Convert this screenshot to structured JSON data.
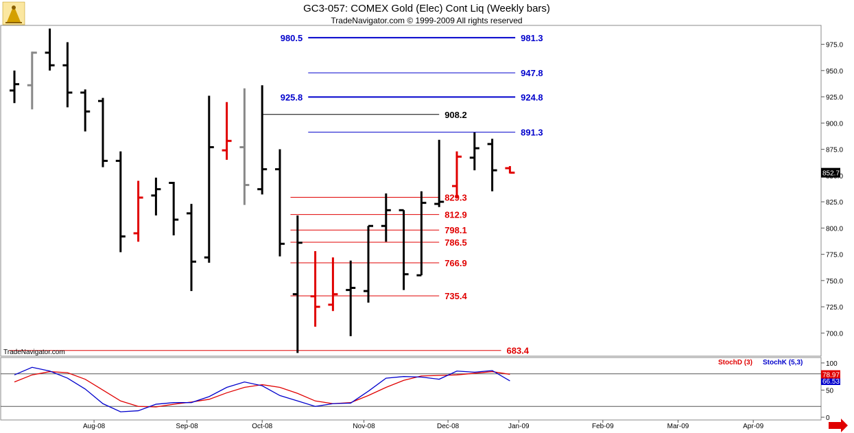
{
  "header": {
    "title": "GC3-057:  COMEX Gold (Elec) Cont Liq  (Weekly bars)",
    "subtitle": "TradeNavigator.com © 1999-2009 All rights reserved"
  },
  "watermark": "TradeNavigator.com",
  "colors": {
    "up": "#000000",
    "red": "#e00000",
    "gray": "#888888",
    "blue": "#0000cc",
    "stochD": "#e00000",
    "stochK": "#0000cc"
  },
  "chart_data": [
    {
      "type": "ohlc",
      "title": "GC3-057:  COMEX Gold (Elec) Cont Liq  (Weekly bars)",
      "ylim": [
        678,
        993
      ],
      "y_ticks": [
        "975.0",
        "950.0",
        "925.0",
        "900.0",
        "875.0",
        "850.0",
        "825.0",
        "800.0",
        "775.0",
        "750.0",
        "725.0",
        "700.0"
      ],
      "x_ticks": [
        "Aug-08",
        "Sep-08",
        "Oct-08",
        "Nov-08",
        "Dec-08",
        "Jan-09",
        "Feb-09",
        "Mar-09",
        "Apr-09"
      ],
      "last_price": "852.7",
      "bars": [
        {
          "o": 931,
          "h": 950,
          "l": 919,
          "c": 937,
          "color": "black"
        },
        {
          "o": 936,
          "h": 968,
          "l": 913,
          "c": 967,
          "color": "gray"
        },
        {
          "o": 967,
          "h": 990,
          "l": 950,
          "c": 955,
          "color": "black"
        },
        {
          "o": 955,
          "h": 977,
          "l": 915,
          "c": 929,
          "color": "black"
        },
        {
          "o": 929,
          "h": 932,
          "l": 892,
          "c": 911,
          "color": "black"
        },
        {
          "o": 921,
          "h": 924,
          "l": 858,
          "c": 864,
          "color": "black"
        },
        {
          "o": 864,
          "h": 873,
          "l": 777,
          "c": 792,
          "color": "black"
        },
        {
          "o": 795,
          "h": 845,
          "l": 787,
          "c": 829,
          "color": "red"
        },
        {
          "o": 831,
          "h": 848,
          "l": 812,
          "c": 837,
          "color": "black"
        },
        {
          "o": 843,
          "h": 844,
          "l": 793,
          "c": 808,
          "color": "black"
        },
        {
          "o": 814,
          "h": 823,
          "l": 740,
          "c": 768,
          "color": "black"
        },
        {
          "o": 772,
          "h": 926,
          "l": 767,
          "c": 877,
          "color": "black"
        },
        {
          "o": 874,
          "h": 920,
          "l": 865,
          "c": 883,
          "color": "red"
        },
        {
          "o": 877,
          "h": 933,
          "l": 822,
          "c": 841,
          "color": "gray"
        },
        {
          "o": 837,
          "h": 936,
          "l": 832,
          "c": 856,
          "color": "black"
        },
        {
          "o": 856,
          "h": 875,
          "l": 773,
          "c": 785,
          "color": "black"
        },
        {
          "o": 737,
          "h": 812,
          "l": 681,
          "c": 786,
          "color": "black"
        },
        {
          "o": 735,
          "h": 778,
          "l": 706,
          "c": 725,
          "color": "red"
        },
        {
          "o": 727,
          "h": 772,
          "l": 721,
          "c": 737,
          "color": "red"
        },
        {
          "o": 741,
          "h": 769,
          "l": 697,
          "c": 743,
          "color": "black"
        },
        {
          "o": 740,
          "h": 802,
          "l": 729,
          "c": 802,
          "color": "black"
        },
        {
          "o": 802,
          "h": 833,
          "l": 787,
          "c": 817,
          "color": "black"
        },
        {
          "o": 817,
          "h": 817,
          "l": 741,
          "c": 756,
          "color": "black"
        },
        {
          "o": 755,
          "h": 835,
          "l": 755,
          "c": 824,
          "color": "black"
        },
        {
          "o": 823,
          "h": 884,
          "l": 820,
          "c": 825,
          "color": "black"
        },
        {
          "o": 840,
          "h": 873,
          "l": 829,
          "c": 868,
          "color": "red"
        },
        {
          "o": 867,
          "h": 891,
          "l": 855,
          "c": 876,
          "color": "black"
        },
        {
          "o": 880,
          "h": 885,
          "l": 835,
          "c": 855,
          "color": "black"
        },
        {
          "o": 857,
          "h": 859,
          "l": 852,
          "c": 852.7,
          "color": "red"
        }
      ],
      "levels": [
        {
          "value": 981.3,
          "label": "981.3",
          "left_label": "980.5",
          "color": "blue",
          "x0": 16.6,
          "x1": 28.3,
          "width": 2
        },
        {
          "value": 947.8,
          "label": "947.8",
          "left_label": "",
          "color": "blue",
          "x0": 16.6,
          "x1": 28.3,
          "width": 1
        },
        {
          "value": 924.8,
          "label": "924.8",
          "left_label": "925.8",
          "color": "blue",
          "x0": 16.6,
          "x1": 28.3,
          "width": 2
        },
        {
          "value": 908.2,
          "label": "908.2",
          "left_label": "",
          "color": "black",
          "x0": 14.0,
          "x1": 24.0,
          "width": 1
        },
        {
          "value": 891.3,
          "label": "891.3",
          "left_label": "",
          "color": "blue",
          "x0": 16.6,
          "x1": 28.3,
          "width": 1
        },
        {
          "value": 829.3,
          "label": "829.3",
          "left_label": "",
          "color": "red",
          "x0": 15.6,
          "x1": 24.0,
          "width": 1
        },
        {
          "value": 812.9,
          "label": "812.9",
          "left_label": "",
          "color": "red",
          "x0": 15.6,
          "x1": 24.0,
          "width": 1
        },
        {
          "value": 798.1,
          "label": "798.1",
          "left_label": "",
          "color": "red",
          "x0": 15.6,
          "x1": 24.0,
          "width": 1
        },
        {
          "value": 786.5,
          "label": "786.5",
          "left_label": "",
          "color": "red",
          "x0": 15.6,
          "x1": 24.0,
          "width": 1
        },
        {
          "value": 766.9,
          "label": "766.9",
          "left_label": "",
          "color": "red",
          "x0": 15.6,
          "x1": 24.0,
          "width": 1
        },
        {
          "value": 735.4,
          "label": "735.4",
          "left_label": "",
          "color": "red",
          "x0": 15.6,
          "x1": 24.0,
          "width": 1
        },
        {
          "value": 683.4,
          "label": "683.4",
          "left_label": "",
          "color": "red",
          "x0": -0.3,
          "x1": 27.5,
          "width": 1
        }
      ]
    },
    {
      "type": "line",
      "legend": [
        "StochD (3)",
        "StochK (5,3)"
      ],
      "ylim": [
        -5,
        110
      ],
      "y_ticks": [
        "100",
        "50",
        "0"
      ],
      "ref_lines": [
        80,
        20
      ],
      "last_values": [
        "78.97",
        "66.53"
      ],
      "series": [
        {
          "name": "StochD (3)",
          "values": [
            65,
            78,
            84,
            82,
            70,
            50,
            30,
            20,
            19,
            24,
            28,
            33,
            45,
            55,
            60,
            55,
            44,
            30,
            25,
            27,
            40,
            55,
            68,
            76,
            77,
            78,
            81,
            84,
            79
          ]
        },
        {
          "name": "StochK (5,3)",
          "values": [
            78,
            92,
            85,
            72,
            52,
            25,
            10,
            12,
            24,
            27,
            27,
            38,
            55,
            65,
            58,
            40,
            30,
            20,
            25,
            26,
            48,
            72,
            75,
            74,
            70,
            85,
            83,
            86,
            67
          ]
        }
      ]
    }
  ]
}
